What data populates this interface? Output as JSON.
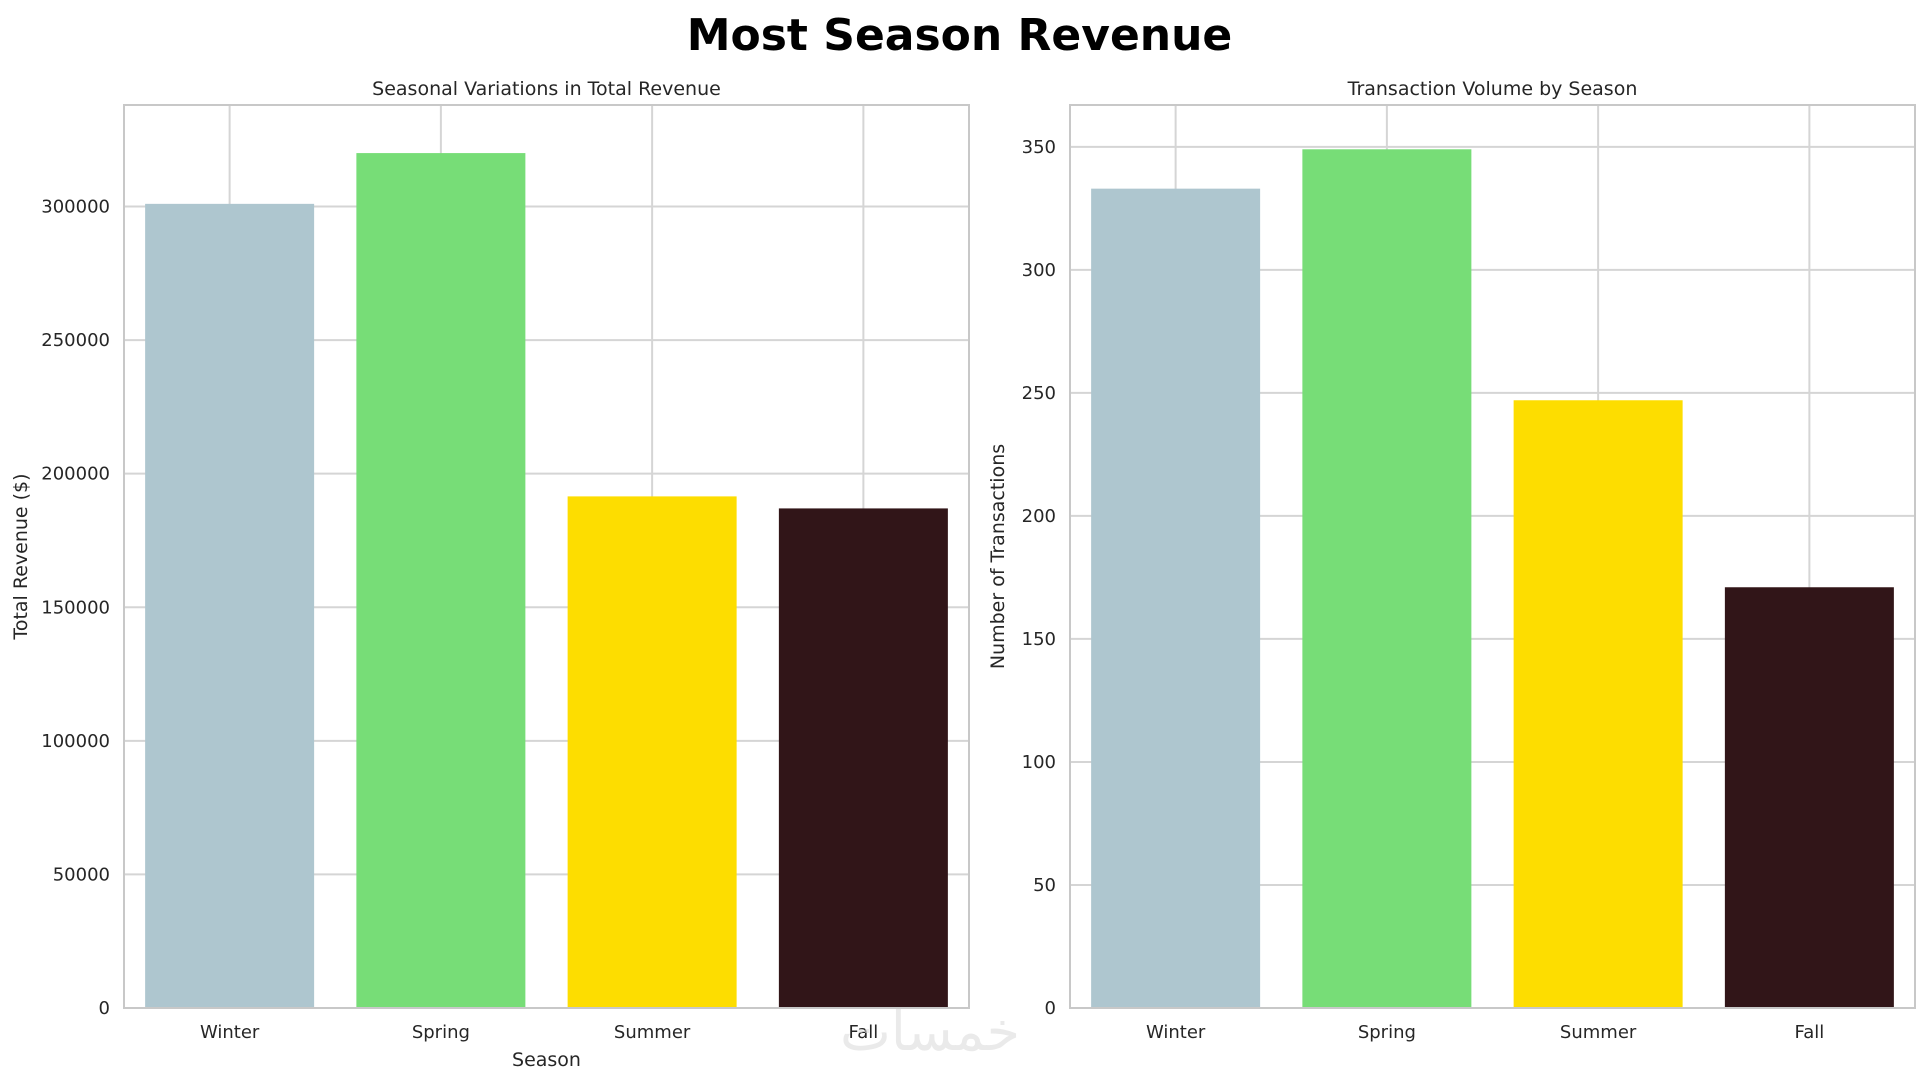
{
  "title": "Most Season Revenue",
  "watermark": "خمسات",
  "colors": {
    "Winter": "#aec6cf",
    "Spring": "#77dd77",
    "Summer": "#fddd00",
    "Fall": "#311518"
  },
  "chart_data": [
    {
      "type": "bar",
      "title": "Seasonal Variations in Total Revenue",
      "xlabel": "Season",
      "ylabel": "Total Revenue ($)",
      "categories": [
        "Winter",
        "Spring",
        "Summer",
        "Fall"
      ],
      "values": [
        301000,
        320000,
        191500,
        187000
      ],
      "ylim": [
        0,
        338000
      ],
      "yticks": [
        0,
        50000,
        100000,
        150000,
        200000,
        250000,
        300000
      ],
      "grid": true
    },
    {
      "type": "bar",
      "title": "Transaction Volume by Season",
      "xlabel": "",
      "ylabel": "Number of Transactions",
      "categories": [
        "Winter",
        "Spring",
        "Summer",
        "Fall"
      ],
      "values": [
        333,
        349,
        247,
        171
      ],
      "ylim": [
        0,
        367
      ],
      "yticks": [
        0,
        50,
        100,
        150,
        200,
        250,
        300,
        350
      ],
      "grid": true
    }
  ]
}
